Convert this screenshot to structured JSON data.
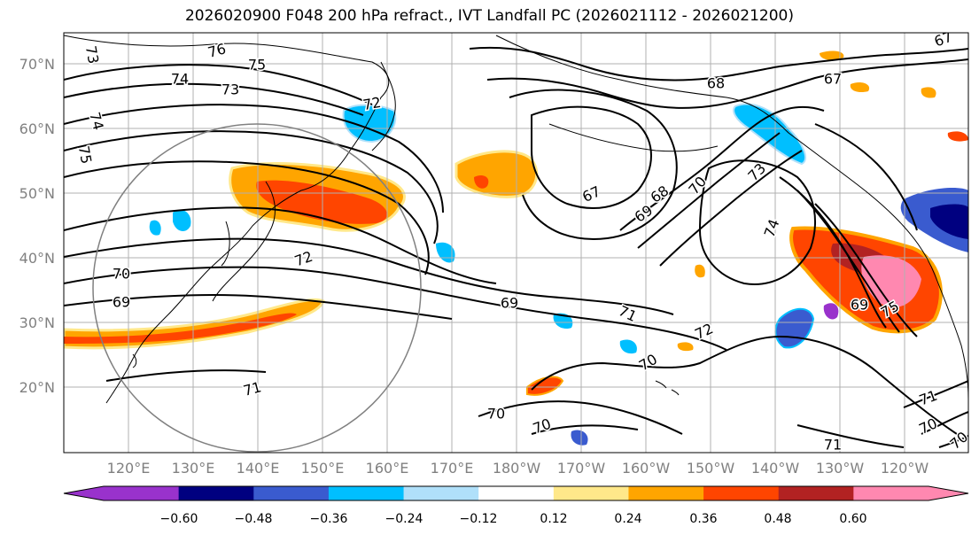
{
  "title": "2026020900 F048 200 hPa refract., IVT Landfall PC (2026021112 - 2026021200)",
  "map": {
    "lat_ticks": [
      "70°N",
      "60°N",
      "50°N",
      "40°N",
      "30°N",
      "20°N"
    ],
    "lon_ticks": [
      "120°E",
      "130°E",
      "140°E",
      "150°E",
      "160°E",
      "170°E",
      "180°W",
      "170°W",
      "160°W",
      "150°W",
      "140°W",
      "130°W",
      "120°W"
    ],
    "contour_labels": [
      "76",
      "75",
      "74",
      "73",
      "72",
      "73",
      "74",
      "75",
      "68",
      "67",
      "67",
      "72",
      "70",
      "69",
      "67",
      "68",
      "69",
      "70",
      "73",
      "74",
      "69",
      "71",
      "72",
      "70",
      "70",
      "70",
      "69",
      "75",
      "71",
      "71",
      "70",
      "70",
      "71"
    ]
  },
  "colorbar": {
    "colors": [
      "#9932CC",
      "#000080",
      "#3A5BCF",
      "#00BFFF",
      "#B0E0FA",
      "#FFFFFF",
      "#FFE88A",
      "#FFA500",
      "#FF4500",
      "#B22222",
      "#FF88B0"
    ],
    "tick_labels": [
      "−0.60",
      "−0.48",
      "−0.36",
      "−0.24",
      "−0.12",
      "0.12",
      "0.24",
      "0.36",
      "0.48",
      "0.60"
    ]
  }
}
